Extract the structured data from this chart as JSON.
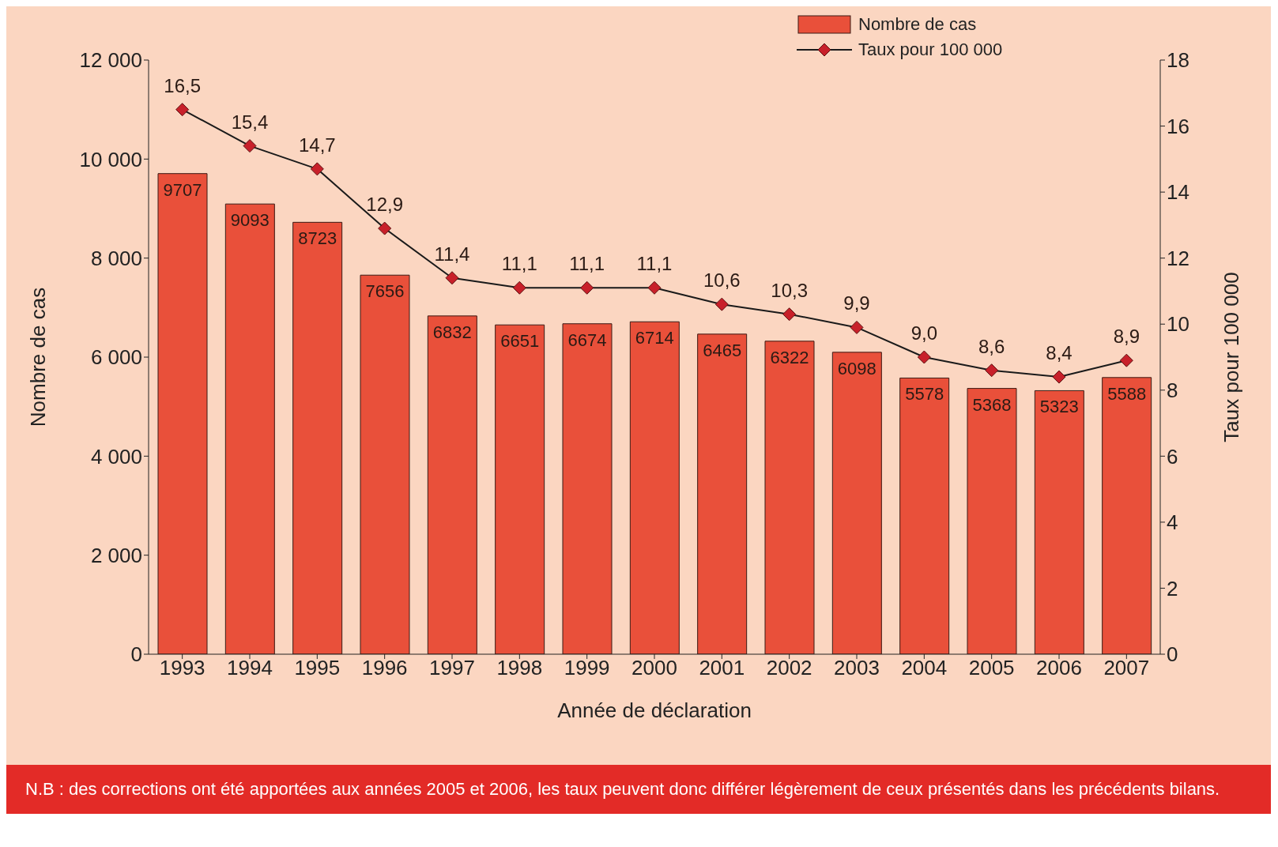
{
  "chart_data": {
    "type": "bar",
    "xlabel": "Année de déclaration",
    "ylabel": "Nombre de cas",
    "y2label": "Taux pour 100 000",
    "categories": [
      "1993",
      "1994",
      "1995",
      "1996",
      "1997",
      "1998",
      "1999",
      "2000",
      "2001",
      "2002",
      "2003",
      "2004",
      "2005",
      "2006",
      "2007"
    ],
    "series": [
      {
        "name": "Nombre de cas",
        "color": "#e9503a",
        "values": [
          9707,
          9093,
          8723,
          7656,
          6832,
          6651,
          6674,
          6714,
          6465,
          6322,
          6098,
          5578,
          5368,
          5323,
          5588
        ],
        "value_labels": [
          "9707",
          "9093",
          "8723",
          "7656",
          "6832",
          "6651",
          "6674",
          "6714",
          "6465",
          "6322",
          "6098",
          "5578",
          "5368",
          "5323",
          "5588"
        ]
      },
      {
        "name": "Taux pour 100 000",
        "type": "line",
        "axis": "y2",
        "color": "#c8202a",
        "values": [
          16.5,
          15.4,
          14.7,
          12.9,
          11.4,
          11.1,
          11.1,
          11.1,
          10.6,
          10.3,
          9.9,
          9.0,
          8.6,
          8.4,
          8.9
        ],
        "value_labels": [
          "16,5",
          "15,4",
          "14,7",
          "12,9",
          "11,4",
          "11,1",
          "11,1",
          "11,1",
          "10,6",
          "10,3",
          "9,9",
          "9,0",
          "8,6",
          "8,4",
          "8,9"
        ]
      }
    ],
    "ylim": [
      0,
      12000
    ],
    "yticks": [
      0,
      {
        "value": 2000,
        "label": "2 000"
      },
      {
        "value": 4000,
        "label": "4 000"
      },
      {
        "value": 6000,
        "label": "6 000"
      },
      {
        "value": 8000,
        "label": "8 000"
      },
      {
        "value": 10000,
        "label": "10 000"
      },
      {
        "value": 12000,
        "label": "12 000"
      }
    ],
    "y2lim": [
      0,
      18
    ],
    "y2ticks": [
      0,
      2,
      4,
      6,
      8,
      10,
      12,
      14,
      16,
      18
    ],
    "marker": "diamond",
    "legend": "top right",
    "grid": false,
    "annotations": [
      "N.B : des corrections ont été apportées aux années 2005 et 2006, les taux peuvent donc différer légèrement de ceux présentés dans les précédents bilans."
    ]
  }
}
